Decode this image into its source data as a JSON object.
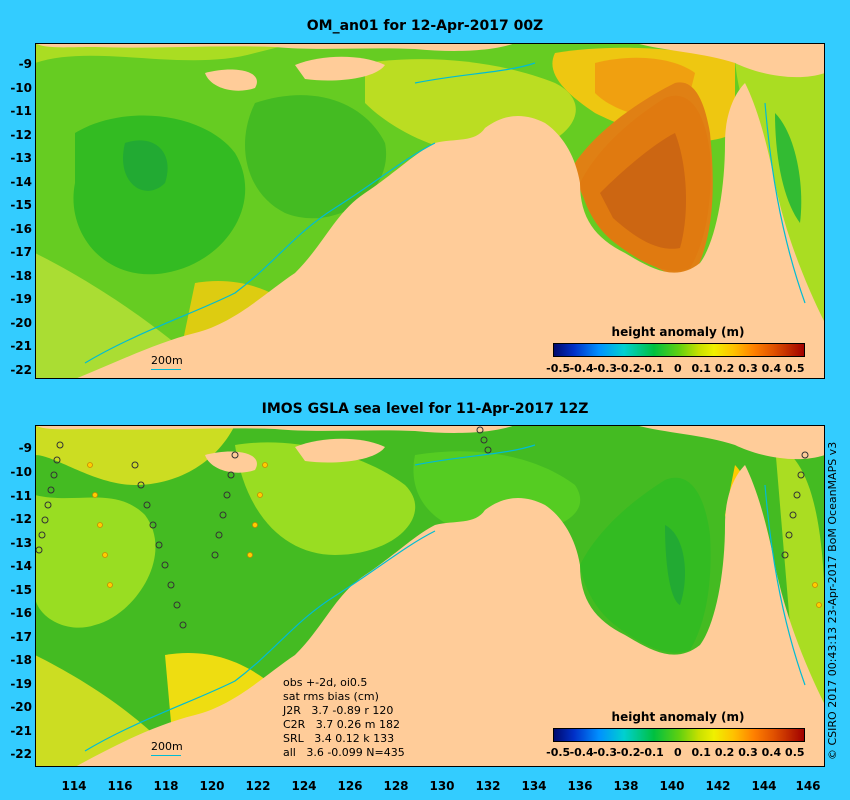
{
  "top_panel": {
    "title": "OM_an01 for 12-Apr-2017 00Z",
    "isobath_label": "200m",
    "legend_title": "height anomaly (m)",
    "legend_ticks": [
      "-0.5",
      "-0.4",
      "-0.3",
      "-0.2",
      "-0.1",
      "0",
      "0.1",
      "0.2",
      "0.3",
      "0.4",
      "0.5"
    ]
  },
  "bottom_panel": {
    "title": "IMOS GSLA sea level  for 11-Apr-2017 12Z",
    "isobath_label": "200m",
    "legend_title": "height anomaly (m)",
    "legend_ticks": [
      "-0.5",
      "-0.4",
      "-0.3",
      "-0.2",
      "-0.1",
      "0",
      "0.1",
      "0.2",
      "0.3",
      "0.4",
      "0.5"
    ],
    "stats": [
      "obs +-2d, oi0.5",
      "sat rms bias (cm)",
      "J2R   3.7 -0.89 r 120",
      "C2R   3.7 0.26 m 182",
      "SRL   3.4 0.12 k 133",
      "all   3.6 -0.099 N=435"
    ]
  },
  "y_axis_labels": [
    "-9",
    "-10",
    "-11",
    "-12",
    "-13",
    "-14",
    "-15",
    "-16",
    "-17",
    "-18",
    "-19",
    "-20",
    "-21",
    "-22"
  ],
  "x_axis_labels": [
    "114",
    "116",
    "118",
    "120",
    "122",
    "124",
    "126",
    "128",
    "130",
    "132",
    "134",
    "136",
    "138",
    "140",
    "142",
    "144",
    "146"
  ],
  "credit": "© CSIRO 2017  00:43:13 23-Apr-2017 BoM OceanMAPS v3",
  "colors": {
    "background": "#33ccff",
    "land": "#ffcc99",
    "ocean_green": "#44cc22",
    "ocean_light": "#99dd33",
    "ocean_yellow": "#dddd11",
    "anomaly_high": "#e07a10",
    "isobath": "#00bcd4"
  }
}
